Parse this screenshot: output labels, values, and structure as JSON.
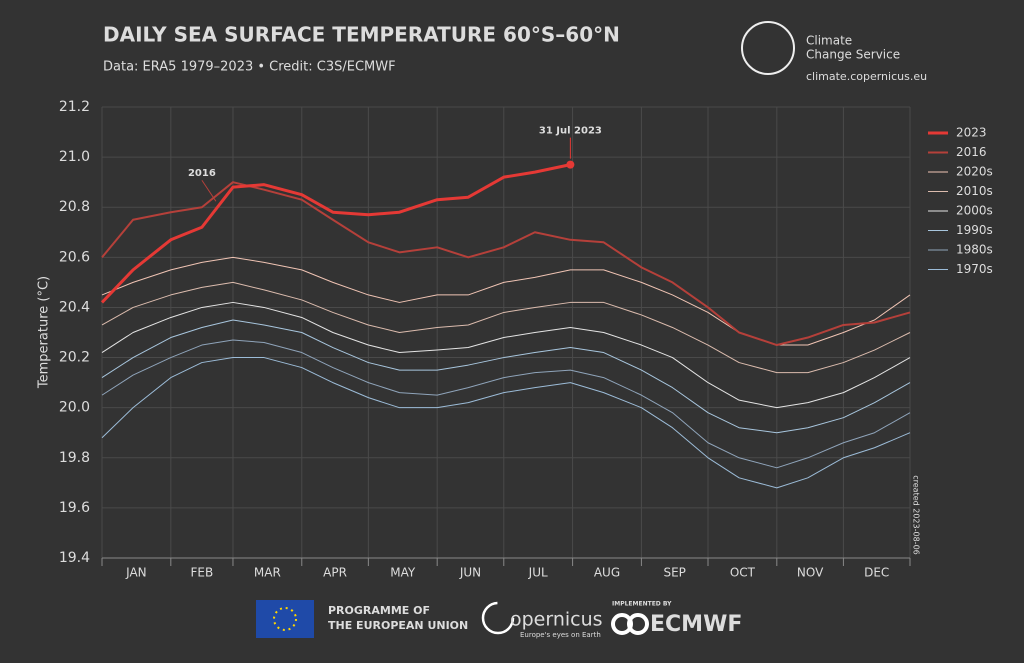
{
  "chart_data": {
    "type": "line",
    "title": "DAILY SEA SURFACE TEMPERATURE 60°S–60°N",
    "subtitle": "Data: ERA5 1979–2023 • Credit: C3S/ECMWF",
    "y_label": "Temperature (°C)",
    "annotations": [
      {
        "text": "31 Jul 2023",
        "series": 0,
        "index": 14
      },
      {
        "text": "2016",
        "series": 1,
        "index": 3
      }
    ],
    "months": [
      "JAN",
      "FEB",
      "MAR",
      "APR",
      "MAY",
      "JUN",
      "JUL",
      "AUG",
      "SEP",
      "OCT",
      "NOV",
      "DEC"
    ],
    "x": [
      1,
      15,
      32,
      46,
      60,
      74,
      91,
      105,
      121,
      135,
      152,
      166,
      182,
      196,
      212,
      227,
      244,
      258,
      274,
      288,
      305,
      319,
      335,
      349,
      365
    ],
    "xlim": [
      1,
      365
    ],
    "xticks": [
      1,
      32,
      60,
      91,
      121,
      152,
      182,
      213,
      244,
      274,
      305,
      335,
      365
    ],
    "ylim": [
      19.4,
      21.2
    ],
    "yticks": [
      19.4,
      19.6,
      19.8,
      {
        "value": 20,
        "label": "20.0"
      },
      20.2,
      20.4,
      20.6,
      20.8,
      {
        "value": 21,
        "label": "21.0"
      },
      21.2
    ],
    "grid": true,
    "legend": "right",
    "series": [
      {
        "name": "2023",
        "color": "#e53935",
        "width": 3,
        "values": [
          20.42,
          20.55,
          20.67,
          20.72,
          20.88,
          20.89,
          20.85,
          20.78,
          20.77,
          20.78,
          20.83,
          20.84,
          20.92,
          20.94,
          20.97,
          null,
          null,
          null,
          null,
          null,
          null,
          null,
          null,
          null,
          null
        ]
      },
      {
        "name": "2016",
        "color": "#b5403a",
        "width": 2,
        "values": [
          20.6,
          20.75,
          20.78,
          20.8,
          20.9,
          20.87,
          20.83,
          20.75,
          20.66,
          20.62,
          20.64,
          20.6,
          20.64,
          20.7,
          20.67,
          20.66,
          20.56,
          20.5,
          20.4,
          20.3,
          20.25,
          20.28,
          20.33,
          20.34,
          20.38
        ]
      },
      {
        "name": "2020s",
        "color": "#f0c4b4",
        "width": 1,
        "values": [
          20.45,
          20.5,
          20.55,
          20.58,
          20.6,
          20.58,
          20.55,
          20.5,
          20.45,
          20.42,
          20.45,
          20.45,
          20.5,
          20.52,
          20.55,
          20.55,
          20.5,
          20.45,
          20.38,
          20.3,
          20.25,
          20.25,
          20.3,
          20.35,
          20.45
        ]
      },
      {
        "name": "2010s",
        "color": "#dcbcae",
        "width": 1,
        "values": [
          20.33,
          20.4,
          20.45,
          20.48,
          20.5,
          20.47,
          20.43,
          20.38,
          20.33,
          20.3,
          20.32,
          20.33,
          20.38,
          20.4,
          20.42,
          20.42,
          20.37,
          20.32,
          20.25,
          20.18,
          20.14,
          20.14,
          20.18,
          20.23,
          20.3
        ]
      },
      {
        "name": "2000s",
        "color": "#e4e4e4",
        "width": 1,
        "values": [
          20.22,
          20.3,
          20.36,
          20.4,
          20.42,
          20.4,
          20.36,
          20.3,
          20.25,
          20.22,
          20.23,
          20.24,
          20.28,
          20.3,
          20.32,
          20.3,
          20.25,
          20.2,
          20.1,
          20.03,
          20.0,
          20.02,
          20.06,
          20.12,
          20.2
        ]
      },
      {
        "name": "1990s",
        "color": "#a8c6de",
        "width": 1,
        "values": [
          20.12,
          20.2,
          20.28,
          20.32,
          20.35,
          20.33,
          20.3,
          20.24,
          20.18,
          20.15,
          20.15,
          20.17,
          20.2,
          20.22,
          20.24,
          20.22,
          20.15,
          20.08,
          19.98,
          19.92,
          19.9,
          19.92,
          19.96,
          20.02,
          20.1
        ]
      },
      {
        "name": "1980s",
        "color": "#8fa4ba",
        "width": 1,
        "values": [
          20.05,
          20.13,
          20.2,
          20.25,
          20.27,
          20.26,
          20.22,
          20.16,
          20.1,
          20.06,
          20.05,
          20.08,
          20.12,
          20.14,
          20.15,
          20.12,
          20.05,
          19.98,
          19.86,
          19.8,
          19.76,
          19.8,
          19.86,
          19.9,
          19.98
        ]
      },
      {
        "name": "1970s",
        "color": "#9cbcd8",
        "width": 1,
        "values": [
          19.88,
          20.0,
          20.12,
          20.18,
          20.2,
          20.2,
          20.16,
          20.1,
          20.04,
          20.0,
          20.0,
          20.02,
          20.06,
          20.08,
          20.1,
          20.06,
          20.0,
          19.92,
          19.8,
          19.72,
          19.68,
          19.72,
          19.8,
          19.84,
          19.9
        ]
      }
    ]
  },
  "branding": {
    "service_line1": "Climate",
    "service_line2": "Change Service",
    "url": "climate.copernicus.eu",
    "created": "created 2023-08-06",
    "eu_line1": "PROGRAMME OF",
    "eu_line2": "THE EUROPEAN UNION",
    "copernicus": "opernicus",
    "copernicus_tag": "Europe's eyes on Earth",
    "implemented": "IMPLEMENTED BY",
    "ecmwf": "ECMWF"
  }
}
